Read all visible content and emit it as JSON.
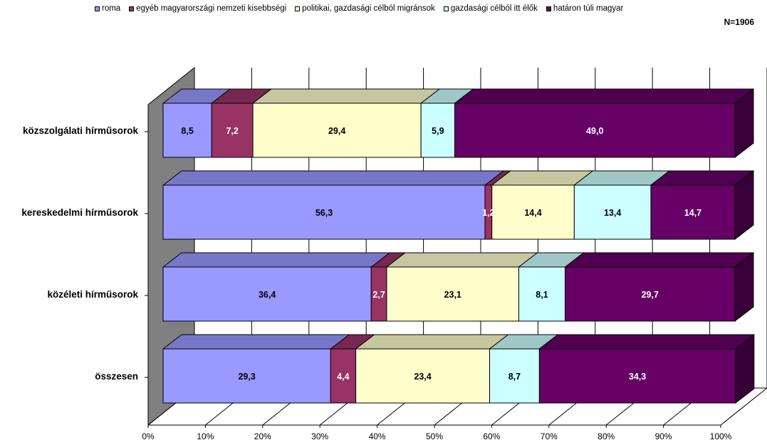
{
  "chart_data": {
    "type": "bar",
    "orientation": "horizontal",
    "stacked": "percent",
    "three_d": true,
    "title": "",
    "note": "N=1906",
    "categories": [
      "közszolgálati hírműsorok",
      "kereskedelmi hírműsorok",
      "közéleti hírműsorok",
      "összesen"
    ],
    "series": [
      {
        "name": "roma",
        "color": "#9999FF",
        "values": [
          8.5,
          56.3,
          36.4,
          29.3
        ]
      },
      {
        "name": "egyéb magyarországi nemzeti kisebbségi",
        "color": "#993366",
        "values": [
          7.2,
          1.2,
          2.7,
          4.4
        ]
      },
      {
        "name": "politikai, gazdasági célból migránsok",
        "color": "#FFFFCC",
        "values": [
          29.4,
          14.4,
          23.1,
          23.4
        ]
      },
      {
        "name": "gazdasági célból itt élők",
        "color": "#CCFFFF",
        "values": [
          5.9,
          13.4,
          8.1,
          8.7
        ]
      },
      {
        "name": "határon túli magyar",
        "color": "#660066",
        "values": [
          49.0,
          14.7,
          29.7,
          34.3
        ]
      }
    ],
    "data_labels": [
      [
        "8,5",
        "7,2",
        "29,4",
        "5,9",
        "49,0"
      ],
      [
        "56,3",
        "1,2",
        "14,4",
        "13,4",
        "14,7"
      ],
      [
        "36,4",
        "2,7",
        "23,1",
        "8,1",
        "29,7"
      ],
      [
        "29,3",
        "4,4",
        "23,4",
        "8,7",
        "34,3"
      ]
    ],
    "x_ticks": [
      "0%",
      "10%",
      "20%",
      "30%",
      "40%",
      "50%",
      "60%",
      "70%",
      "80%",
      "90%",
      "100%"
    ],
    "xlim": [
      0,
      100
    ],
    "legend_position": "top",
    "grid": true
  }
}
